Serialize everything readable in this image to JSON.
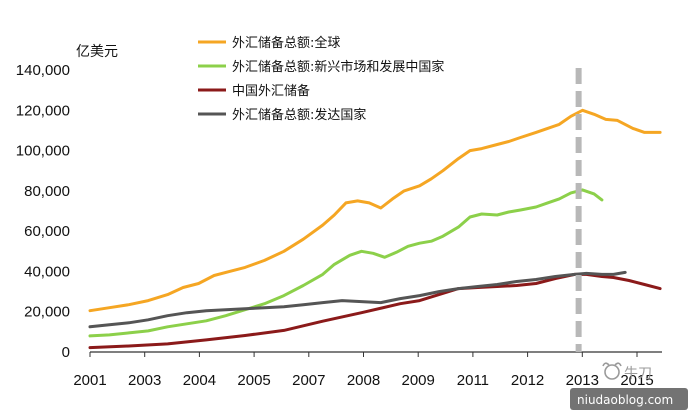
{
  "chart_data": {
    "type": "line",
    "unit_label": "亿美元",
    "ylim": [
      0,
      140000
    ],
    "yticks": [
      "0",
      "20,000",
      "40,000",
      "60,000",
      "80,000",
      "100,000",
      "120,000",
      "140,000"
    ],
    "xlim": [
      2001,
      2015.75
    ],
    "xticks": [
      "2001",
      "2003",
      "2004",
      "2005",
      "2007",
      "2008",
      "2009",
      "2011",
      "2012",
      "2013",
      "2015"
    ],
    "grid": false,
    "legend_position": "top",
    "reference_line": {
      "x": 2013.6,
      "style": "dashed",
      "color": "#b8b8b8"
    },
    "series": [
      {
        "name": "外汇储备总额:全球",
        "color": "#f5a623",
        "points": [
          [
            2001,
            20500
          ],
          [
            2001.5,
            22000
          ],
          [
            2002,
            23500
          ],
          [
            2002.5,
            25500
          ],
          [
            2003,
            28500
          ],
          [
            2003.4,
            32000
          ],
          [
            2003.8,
            34000
          ],
          [
            2004.2,
            38000
          ],
          [
            2004.6,
            40000
          ],
          [
            2005,
            42000
          ],
          [
            2005.5,
            45500
          ],
          [
            2006,
            50000
          ],
          [
            2006.5,
            56000
          ],
          [
            2007,
            63000
          ],
          [
            2007.3,
            68000
          ],
          [
            2007.6,
            74000
          ],
          [
            2007.9,
            75000
          ],
          [
            2008.2,
            74000
          ],
          [
            2008.5,
            71500
          ],
          [
            2008.8,
            76000
          ],
          [
            2009.1,
            80000
          ],
          [
            2009.5,
            82500
          ],
          [
            2009.8,
            86000
          ],
          [
            2010.1,
            90000
          ],
          [
            2010.5,
            96000
          ],
          [
            2010.8,
            100000
          ],
          [
            2011.1,
            101000
          ],
          [
            2011.5,
            103000
          ],
          [
            2011.8,
            104500
          ],
          [
            2012.1,
            106500
          ],
          [
            2012.5,
            109000
          ],
          [
            2012.8,
            111000
          ],
          [
            2013.1,
            113000
          ],
          [
            2013.4,
            117000
          ],
          [
            2013.7,
            120000
          ],
          [
            2014,
            118000
          ],
          [
            2014.3,
            115500
          ],
          [
            2014.6,
            115000
          ],
          [
            2015,
            111000
          ],
          [
            2015.3,
            109000
          ],
          [
            2015.7,
            109000
          ]
        ]
      },
      {
        "name": "外汇储备总额:新兴市场和发展中国家",
        "color": "#8cd04a",
        "points": [
          [
            2001,
            8000
          ],
          [
            2001.5,
            8500
          ],
          [
            2002,
            9500
          ],
          [
            2002.5,
            10500
          ],
          [
            2003,
            12500
          ],
          [
            2003.5,
            14000
          ],
          [
            2004,
            15500
          ],
          [
            2004.5,
            18000
          ],
          [
            2005,
            21000
          ],
          [
            2005.5,
            24000
          ],
          [
            2006,
            28000
          ],
          [
            2006.5,
            33000
          ],
          [
            2007,
            38500
          ],
          [
            2007.3,
            43500
          ],
          [
            2007.7,
            48000
          ],
          [
            2008,
            50000
          ],
          [
            2008.3,
            49000
          ],
          [
            2008.6,
            47000
          ],
          [
            2008.9,
            49500
          ],
          [
            2009.2,
            52500
          ],
          [
            2009.5,
            54000
          ],
          [
            2009.8,
            55000
          ],
          [
            2010.1,
            57500
          ],
          [
            2010.5,
            62000
          ],
          [
            2010.8,
            67000
          ],
          [
            2011.1,
            68500
          ],
          [
            2011.5,
            68000
          ],
          [
            2011.8,
            69500
          ],
          [
            2012.1,
            70500
          ],
          [
            2012.5,
            72000
          ],
          [
            2012.8,
            74000
          ],
          [
            2013.1,
            76000
          ],
          [
            2013.4,
            79000
          ],
          [
            2013.7,
            80500
          ],
          [
            2014,
            78500
          ],
          [
            2014.2,
            75500
          ]
        ]
      },
      {
        "name": "中国外汇储备",
        "color": "#8b1a1a",
        "points": [
          [
            2001,
            2200
          ],
          [
            2002,
            3000
          ],
          [
            2003,
            4000
          ],
          [
            2004,
            6000
          ],
          [
            2005,
            8200
          ],
          [
            2006,
            10700
          ],
          [
            2007,
            15300
          ],
          [
            2008,
            19500
          ],
          [
            2009,
            24000
          ],
          [
            2009.5,
            25500
          ],
          [
            2010,
            28500
          ],
          [
            2010.5,
            31500
          ],
          [
            2011,
            32000
          ],
          [
            2011.5,
            32500
          ],
          [
            2012,
            33000
          ],
          [
            2012.5,
            34000
          ],
          [
            2013,
            36500
          ],
          [
            2013.5,
            38500
          ],
          [
            2013.8,
            38500
          ],
          [
            2014.2,
            37500
          ],
          [
            2014.5,
            37000
          ],
          [
            2014.9,
            35500
          ],
          [
            2015.3,
            33500
          ],
          [
            2015.7,
            31500
          ]
        ]
      },
      {
        "name": "外汇储备总额:发达国家",
        "color": "#555555",
        "points": [
          [
            2001,
            12500
          ],
          [
            2001.5,
            13500
          ],
          [
            2002,
            14500
          ],
          [
            2002.5,
            16000
          ],
          [
            2003,
            18000
          ],
          [
            2003.5,
            19500
          ],
          [
            2004,
            20500
          ],
          [
            2004.5,
            21000
          ],
          [
            2005,
            21500
          ],
          [
            2005.5,
            22000
          ],
          [
            2006,
            22500
          ],
          [
            2006.5,
            23500
          ],
          [
            2007,
            24500
          ],
          [
            2007.5,
            25500
          ],
          [
            2008,
            25000
          ],
          [
            2008.5,
            24500
          ],
          [
            2009,
            26500
          ],
          [
            2009.5,
            28000
          ],
          [
            2010,
            30000
          ],
          [
            2010.5,
            31500
          ],
          [
            2011,
            32500
          ],
          [
            2011.5,
            33500
          ],
          [
            2012,
            35000
          ],
          [
            2012.5,
            36000
          ],
          [
            2013,
            37500
          ],
          [
            2013.5,
            38500
          ],
          [
            2013.8,
            39000
          ],
          [
            2014.2,
            38500
          ],
          [
            2014.5,
            38500
          ],
          [
            2014.8,
            39500
          ]
        ]
      }
    ]
  },
  "watermark": {
    "icon": "bull-head-icon",
    "brand_text": "牛刀",
    "url_text": "niudaoblog.com"
  }
}
